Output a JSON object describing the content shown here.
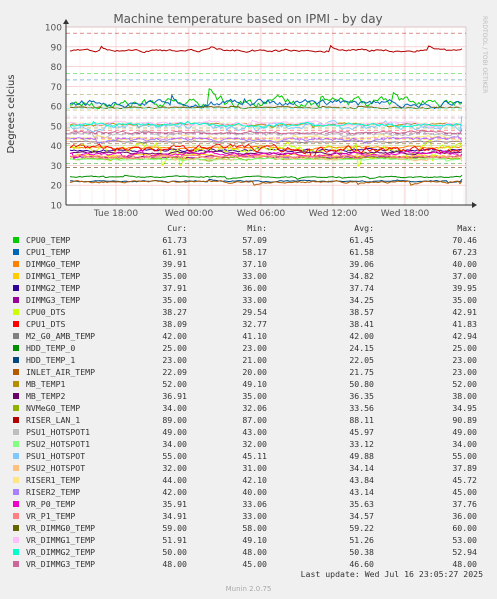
{
  "chart_data": {
    "type": "line",
    "title": "Machine temperature based on IPMI - by day",
    "ylabel": "Degrees celcius",
    "ylim": [
      10,
      100
    ],
    "yticks": [
      "10",
      "20",
      "30",
      "40",
      "50",
      "60",
      "70",
      "80",
      "90",
      "100"
    ],
    "xticks": [
      "Tue 18:00",
      "Wed 00:00",
      "Wed 06:00",
      "Wed 12:00",
      "Wed 18:00"
    ],
    "watermark": "RRDTOOL / TOBI OETIKER",
    "grid": true,
    "series": [
      {
        "name": "CPU0_TEMP",
        "color": "#00cc00",
        "cur": "61.73",
        "min": "57.09",
        "avg": "61.45",
        "max": "70.46"
      },
      {
        "name": "CPU1_TEMP",
        "color": "#0066b3",
        "cur": "61.91",
        "min": "58.17",
        "avg": "61.58",
        "max": "67.23"
      },
      {
        "name": "DIMMG0_TEMP",
        "color": "#ff8000",
        "cur": "39.91",
        "min": "37.10",
        "avg": "39.06",
        "max": "40.00"
      },
      {
        "name": "DIMMG1_TEMP",
        "color": "#ffcc00",
        "cur": "35.00",
        "min": "33.00",
        "avg": "34.82",
        "max": "37.00"
      },
      {
        "name": "DIMMG2_TEMP",
        "color": "#330099",
        "cur": "37.91",
        "min": "36.00",
        "avg": "37.74",
        "max": "39.95"
      },
      {
        "name": "DIMMG3_TEMP",
        "color": "#990099",
        "cur": "35.00",
        "min": "33.00",
        "avg": "34.25",
        "max": "35.00"
      },
      {
        "name": "CPU0_DTS",
        "color": "#ccff00",
        "cur": "38.27",
        "min": "29.54",
        "avg": "38.57",
        "max": "42.91"
      },
      {
        "name": "CPU1_DTS",
        "color": "#ff0000",
        "cur": "38.09",
        "min": "32.77",
        "avg": "38.41",
        "max": "41.83"
      },
      {
        "name": "M2_G0_AMB_TEMP",
        "color": "#808080",
        "cur": "42.00",
        "min": "41.10",
        "avg": "42.00",
        "max": "42.94"
      },
      {
        "name": "HDD_TEMP_0",
        "color": "#008f00",
        "cur": "25.00",
        "min": "23.00",
        "avg": "24.15",
        "max": "25.00"
      },
      {
        "name": "HDD_TEMP_1",
        "color": "#00487d",
        "cur": "23.00",
        "min": "21.00",
        "avg": "22.05",
        "max": "23.00"
      },
      {
        "name": "INLET_AIR_TEMP",
        "color": "#b35a00",
        "cur": "22.09",
        "min": "20.00",
        "avg": "21.75",
        "max": "23.00"
      },
      {
        "name": "MB_TEMP1",
        "color": "#b38f00",
        "cur": "52.00",
        "min": "49.10",
        "avg": "50.80",
        "max": "52.00"
      },
      {
        "name": "MB_TEMP2",
        "color": "#6b006b",
        "cur": "36.91",
        "min": "35.00",
        "avg": "36.35",
        "max": "38.00"
      },
      {
        "name": "NVMeG0_TEMP",
        "color": "#8fb300",
        "cur": "34.00",
        "min": "32.06",
        "avg": "33.56",
        "max": "34.95"
      },
      {
        "name": "RISER_LAN_1",
        "color": "#b30000",
        "cur": "89.00",
        "min": "87.00",
        "avg": "88.11",
        "max": "90.89"
      },
      {
        "name": "PSU1_HOTSPOT1",
        "color": "#bebebe",
        "cur": "49.00",
        "min": "43.00",
        "avg": "45.97",
        "max": "49.00"
      },
      {
        "name": "PSU2_HOTSPOT1",
        "color": "#80ff80",
        "cur": "34.00",
        "min": "32.00",
        "avg": "33.12",
        "max": "34.00"
      },
      {
        "name": "PSU1_HOTSPOT",
        "color": "#80c9ff",
        "cur": "55.00",
        "min": "45.11",
        "avg": "49.88",
        "max": "55.00"
      },
      {
        "name": "PSU2_HOTSPOT",
        "color": "#ffc080",
        "cur": "32.00",
        "min": "31.00",
        "avg": "34.14",
        "max": "37.89"
      },
      {
        "name": "RISER1_TEMP",
        "color": "#ffe680",
        "cur": "44.00",
        "min": "42.10",
        "avg": "43.84",
        "max": "45.72"
      },
      {
        "name": "RISER2_TEMP",
        "color": "#aa80ff",
        "cur": "42.00",
        "min": "40.00",
        "avg": "43.14",
        "max": "45.00"
      },
      {
        "name": "VR_P0_TEMP",
        "color": "#ee00cc",
        "cur": "35.91",
        "min": "33.06",
        "avg": "35.63",
        "max": "37.76"
      },
      {
        "name": "VR_P1_TEMP",
        "color": "#ff8080",
        "cur": "34.91",
        "min": "33.00",
        "avg": "34.57",
        "max": "36.00"
      },
      {
        "name": "VR_DIMMG0_TEMP",
        "color": "#666600",
        "cur": "59.00",
        "min": "58.00",
        "avg": "59.22",
        "max": "60.00"
      },
      {
        "name": "VR_DIMMG1_TEMP",
        "color": "#ffbfff",
        "cur": "51.91",
        "min": "49.10",
        "avg": "51.26",
        "max": "53.00"
      },
      {
        "name": "VR_DIMMG2_TEMP",
        "color": "#00ffcc",
        "cur": "50.00",
        "min": "48.00",
        "avg": "50.38",
        "max": "52.94"
      },
      {
        "name": "VR_DIMMG3_TEMP",
        "color": "#cc6699",
        "cur": "48.00",
        "min": "45.00",
        "avg": "46.60",
        "max": "48.00"
      }
    ]
  },
  "legend_header": {
    "cur": "Cur:",
    "min": "Min:",
    "avg": "Avg:",
    "max": "Max:"
  },
  "last_update": "Last update: Wed Jul 16 23:05:27 2025",
  "footer": "Munin 2.0.75"
}
